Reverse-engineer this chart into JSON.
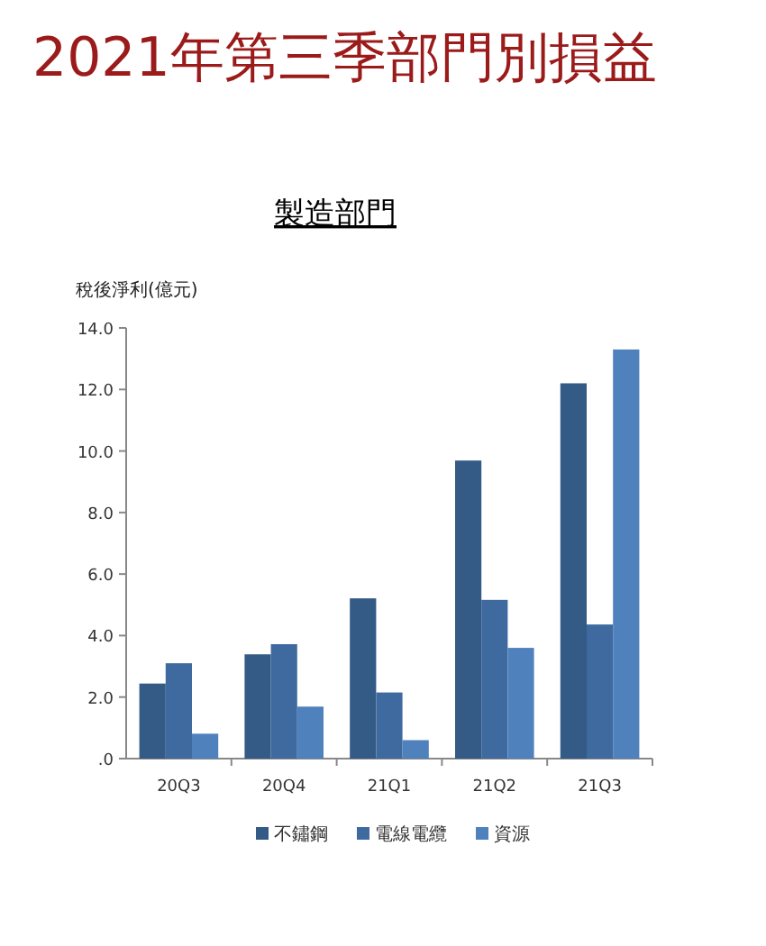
{
  "chart_data": {
    "type": "bar",
    "title": "2021年第三季部門別損益",
    "subtitle": "製造部門",
    "ylabel": "稅後淨利(億元)",
    "categories": [
      "20Q3",
      "20Q4",
      "21Q1",
      "21Q2",
      "21Q3"
    ],
    "series": [
      {
        "name": "不鏽鋼",
        "color": "#345a86",
        "values": [
          2.44,
          3.39,
          5.21,
          9.69,
          12.2
        ]
      },
      {
        "name": "電線電纜",
        "color": "#3f6aa0",
        "values": [
          3.1,
          3.72,
          2.15,
          5.16,
          4.36
        ]
      },
      {
        "name": "資源",
        "color": "#4f81bd",
        "values": [
          0.81,
          1.69,
          0.6,
          3.6,
          13.3
        ]
      }
    ],
    "ylim": [
      0,
      14
    ],
    "yticks": [
      {
        "value": 0,
        "label": ".0"
      },
      {
        "value": 2,
        "label": "2.0"
      },
      {
        "value": 4,
        "label": "4.0"
      },
      {
        "value": 6,
        "label": "6.0"
      },
      {
        "value": 8,
        "label": "8.0"
      },
      {
        "value": 10,
        "label": "10.0"
      },
      {
        "value": 12,
        "label": "12.0"
      },
      {
        "value": 14,
        "label": "14.0"
      }
    ],
    "grid": false,
    "legend": "bottom"
  }
}
